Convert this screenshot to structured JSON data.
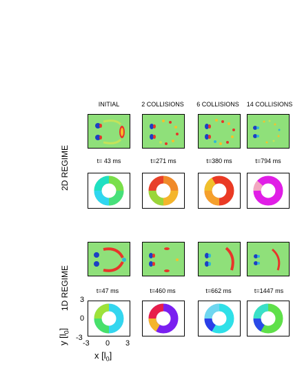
{
  "columns": [
    "INITIAL",
    "2 COLLISIONS",
    "6 COLLISIONS",
    "14 COLLISIONS"
  ],
  "regimes": [
    {
      "label": "2D REGIME",
      "times": [
        "t= 43 ms",
        "t=271 ms",
        "t=380 ms",
        "t=794 ms"
      ]
    },
    {
      "label": "1D REGIME",
      "times": [
        "t=47 ms",
        "t=460 ms",
        "t=662 ms",
        "t=1447 ms"
      ]
    }
  ],
  "axes": {
    "y_label": "y [l",
    "y_sub": "0",
    "y_close": "]",
    "x_label": "x [l",
    "x_sub": "0",
    "x_close": "]",
    "y_ticks": [
      "3",
      "0",
      "-3"
    ],
    "x_ticks": [
      "-3",
      "0",
      "3"
    ]
  },
  "colors": {
    "background_field": "#8fe07a",
    "red": "#e8352a",
    "blue": "#1d3fc4"
  }
}
